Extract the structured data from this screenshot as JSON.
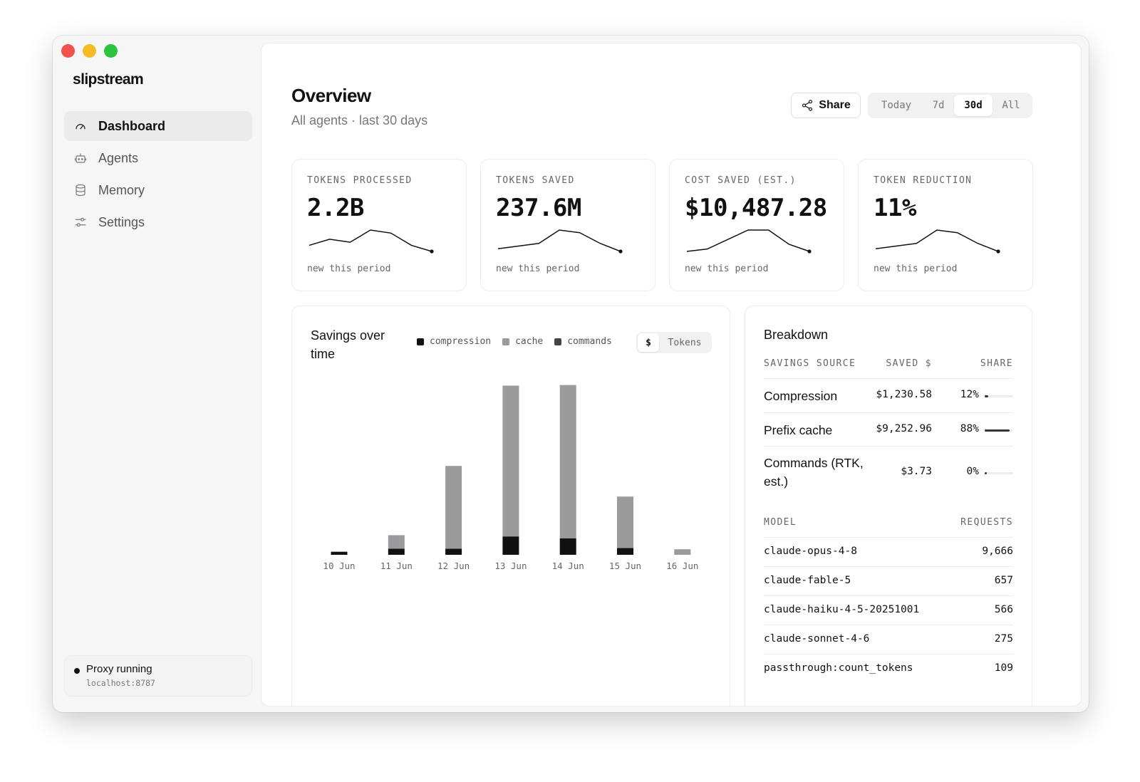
{
  "app": {
    "logo": "slipstream"
  },
  "sidebar": {
    "items": [
      {
        "label": "Dashboard",
        "icon": "gauge-icon",
        "active": true
      },
      {
        "label": "Agents",
        "icon": "robot-icon",
        "active": false
      },
      {
        "label": "Memory",
        "icon": "database-icon",
        "active": false
      },
      {
        "label": "Settings",
        "icon": "sliders-icon",
        "active": false
      }
    ],
    "status": {
      "title": "Proxy running",
      "address": "localhost:8787"
    }
  },
  "header": {
    "title": "Overview",
    "subtitle": "All agents · last 30 days",
    "share_label": "Share",
    "ranges": [
      "Today",
      "7d",
      "30d",
      "All"
    ],
    "active_range": "30d"
  },
  "stats": [
    {
      "label": "TOKENS PROCESSED",
      "value": "2.2B",
      "footer": "new this period",
      "trend": [
        4,
        6,
        5,
        9,
        8,
        4,
        2
      ]
    },
    {
      "label": "TOKENS SAVED",
      "value": "237.6M",
      "footer": "new this period",
      "trend": [
        3,
        4,
        5,
        10,
        9,
        5,
        2
      ]
    },
    {
      "label": "COST SAVED (EST.)",
      "value": "$10,487.28",
      "footer": "new this period",
      "trend": [
        2,
        3,
        7,
        11,
        11,
        5,
        2
      ]
    },
    {
      "label": "TOKEN REDUCTION",
      "value": "11%",
      "footer": "new this period",
      "trend": [
        3,
        4,
        5,
        10,
        9,
        5,
        2
      ]
    }
  ],
  "savings_chart": {
    "title": "Savings over time",
    "legend": [
      {
        "label": "compression",
        "color": "#111111"
      },
      {
        "label": "cache",
        "color": "#9b9b9e"
      },
      {
        "label": "commands",
        "color": "#444444"
      }
    ],
    "unit_options": [
      "$",
      "Tokens"
    ],
    "active_unit": "$"
  },
  "chart_data": {
    "type": "bar",
    "stacked": true,
    "categories": [
      "10 Jun",
      "11 Jun",
      "12 Jun",
      "13 Jun",
      "14 Jun",
      "15 Jun",
      "16 Jun"
    ],
    "series": [
      {
        "name": "compression",
        "color": "#111111",
        "values": [
          0.5,
          1,
          1,
          3,
          2.7,
          1.1,
          0
        ]
      },
      {
        "name": "cache",
        "color": "#9b9b9e",
        "values": [
          0,
          2.2,
          13.5,
          24.6,
          25,
          8.4,
          0.9
        ]
      },
      {
        "name": "commands",
        "color": "#444444",
        "values": [
          0,
          0,
          0,
          0,
          0,
          0,
          0
        ]
      }
    ],
    "ylim": [
      0,
      28
    ],
    "grid": false,
    "legend_position": "top-right"
  },
  "breakdown": {
    "title": "Breakdown",
    "source_headers": [
      "SAVINGS SOURCE",
      "SAVED $",
      "SHARE"
    ],
    "sources": [
      {
        "name": "Compression",
        "saved": "$1,230.58",
        "share": "12%",
        "share_value": 0.12
      },
      {
        "name": "Prefix cache",
        "saved": "$9,252.96",
        "share": "88%",
        "share_value": 0.88
      },
      {
        "name": "Commands (RTK, est.)",
        "saved": "$3.73",
        "share": "0%",
        "share_value": 0.0
      }
    ],
    "model_headers": [
      "MODEL",
      "REQUESTS"
    ],
    "models": [
      {
        "name": "claude-opus-4-8",
        "requests": "9,666"
      },
      {
        "name": "claude-fable-5",
        "requests": "657"
      },
      {
        "name": "claude-haiku-4-5-20251001",
        "requests": "566"
      },
      {
        "name": "claude-sonnet-4-6",
        "requests": "275"
      },
      {
        "name": "passthrough:count_tokens",
        "requests": "109"
      }
    ]
  }
}
